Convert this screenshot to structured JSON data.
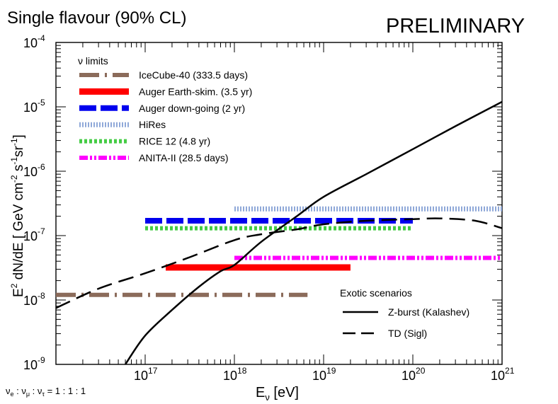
{
  "chart_data": {
    "type": "line",
    "title": "Single flavour (90% CL)",
    "watermark": "PRELIMINARY",
    "xlabel": "E_ν [eV]",
    "ylabel": "E² dN/dE  [ GeV cm⁻² s⁻¹ sr⁻¹]",
    "x_scale": "log",
    "y_scale": "log",
    "xlim": [
      1e+16,
      1e+21
    ],
    "ylim": [
      1e-09,
      0.0001
    ],
    "x_ticks": [
      {
        "value": 1e+17,
        "base": "10",
        "exp": "17"
      },
      {
        "value": 1e+18,
        "base": "10",
        "exp": "18"
      },
      {
        "value": 1e+19,
        "base": "10",
        "exp": "19"
      },
      {
        "value": 1e+20,
        "base": "10",
        "exp": "20"
      },
      {
        "value": 1e+21,
        "base": "10",
        "exp": "21"
      }
    ],
    "y_ticks": [
      {
        "value": 1e-09,
        "base": "10",
        "exp": "-9"
      },
      {
        "value": 1e-08,
        "base": "10",
        "exp": "-8"
      },
      {
        "value": 1e-07,
        "base": "10",
        "exp": "-7"
      },
      {
        "value": 1e-06,
        "base": "10",
        "exp": "-6"
      },
      {
        "value": 1e-05,
        "base": "10",
        "exp": "-5"
      },
      {
        "value": 0.0001,
        "base": "10",
        "exp": "-4"
      }
    ],
    "flavour_note": "ν_e : ν_μ : ν_τ = 1 : 1 : 1",
    "limits_legend_title": "ν limits",
    "limits": [
      {
        "name": "IceCube-40 (333.5 days)",
        "color": "#8b6b5a",
        "style": "dashdot-long",
        "x": [
          1e+16,
          6.6e+18
        ],
        "y": 1.2e-08
      },
      {
        "name": "Auger Earth-skim. (3.5 yr)",
        "color": "#ff0000",
        "style": "solid-thick",
        "x": [
          1.7e+17,
          2e+19
        ],
        "y": 3.2e-08
      },
      {
        "name": "Auger down-going (2 yr)",
        "color": "#0000ee",
        "style": "dashed",
        "x": [
          1e+17,
          1e+20
        ],
        "y": 1.7e-07
      },
      {
        "name": "HiRes",
        "color": "#8fa8d8",
        "style": "dotted-fine",
        "x": [
          1e+18,
          1e+21
        ],
        "y": 2.6e-07
      },
      {
        "name": "RICE 12 (4.8 yr)",
        "color": "#44cc44",
        "style": "dotted",
        "x": [
          1e+17,
          1e+20
        ],
        "y": 1.3e-07
      },
      {
        "name": "ANITA-II (28.5 days)",
        "color": "#ff00ff",
        "style": "dashdotdot",
        "x": [
          1e+18,
          1e+21
        ],
        "y": 4.5e-08
      }
    ],
    "scenarios_legend_title": "Exotic scenarios",
    "scenarios": [
      {
        "name": "Z-burst (Kalashev)",
        "style": "solid",
        "x": [
          6e+16,
          1e+17,
          2e+17,
          4e+17,
          7e+17,
          1e+18,
          2e+18,
          5e+18,
          1e+19,
          3e+19,
          1e+20,
          3e+20,
          1e+21
        ],
        "y": [
          1e-09,
          2.8e-09,
          7e-09,
          1.6e-08,
          2.8e-08,
          3.5e-08,
          8e-08,
          2e-07,
          4e-07,
          9e-07,
          2.2e-06,
          5e-06,
          1.2e-05
        ]
      },
      {
        "name": "TD (Sigl)",
        "style": "dashed",
        "x": [
          1e+16,
          3e+16,
          1e+17,
          3e+17,
          1e+18,
          2e+18,
          5e+18,
          1e+19,
          3e+19,
          1e+20,
          2e+20,
          5e+20,
          1e+21
        ],
        "y": [
          7.5e-09,
          1.5e-08,
          2.6e-08,
          4.5e-08,
          8.5e-08,
          1.05e-07,
          1.25e-07,
          1.5e-07,
          1.7e-07,
          1.8e-07,
          1.85e-07,
          1.7e-07,
          1.3e-07
        ]
      }
    ]
  }
}
